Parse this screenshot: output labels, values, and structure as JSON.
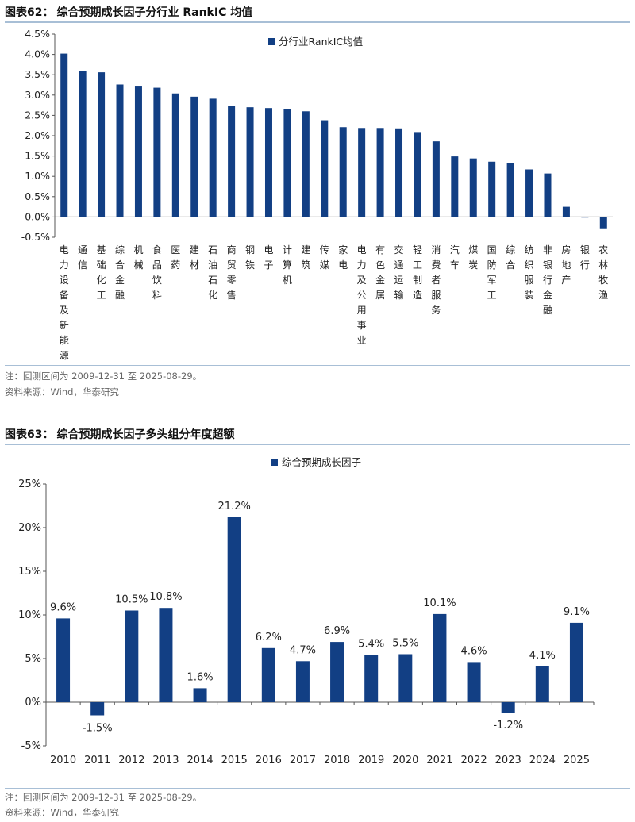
{
  "figure1": {
    "label": "图表62：",
    "title": "综合预期成长因子分行业 RankIC 均值",
    "note": "注：回测区间为 2009-12-31 至 2025-08-29。",
    "source": "资料来源：Wind，华泰研究"
  },
  "figure2": {
    "label": "图表63：",
    "title": "综合预期成长因子多头组分年度超额",
    "note": "注：回测区间为 2009-12-31 至 2025-08-29。",
    "source": "资料来源：Wind，华泰研究"
  },
  "colors": {
    "bar": "#123f84",
    "axis": "#555555"
  },
  "chart_data": [
    {
      "type": "bar",
      "title": "综合预期成长因子分行业 RankIC 均值",
      "legend": "分行业RankIC均值",
      "legend_position": "top-center",
      "ylim": [
        -0.5,
        4.5
      ],
      "yticks": [
        "-0.5%",
        "0.0%",
        "0.5%",
        "1.0%",
        "1.5%",
        "2.0%",
        "2.5%",
        "3.0%",
        "3.5%",
        "4.0%",
        "4.5%"
      ],
      "categories": [
        "电力设备及新能源",
        "通信",
        "基础化工",
        "综合金融",
        "机械",
        "食品饮料",
        "医药",
        "建材",
        "石油石化",
        "商贸零售",
        "钢铁",
        "电子",
        "计算机",
        "建筑",
        "传媒",
        "家电",
        "电力及公用事业",
        "有色金属",
        "交通运输",
        "轻工制造",
        "消费者服务",
        "汽车",
        "煤炭",
        "国防军工",
        "综合",
        "纺织服装",
        "非银行金融",
        "房地产",
        "银行",
        "农林牧渔"
      ],
      "values": [
        4.02,
        3.6,
        3.56,
        3.26,
        3.21,
        3.18,
        3.04,
        2.96,
        2.91,
        2.73,
        2.7,
        2.68,
        2.66,
        2.6,
        2.38,
        2.21,
        2.19,
        2.19,
        2.18,
        2.09,
        1.86,
        1.49,
        1.44,
        1.36,
        1.32,
        1.17,
        1.07,
        0.25,
        -0.01,
        -0.28
      ]
    },
    {
      "type": "bar",
      "title": "综合预期成长因子多头组分年度超额",
      "legend": "综合预期成长因子",
      "legend_position": "top-center",
      "ylim": [
        -5,
        25
      ],
      "yticks": [
        "-5%",
        "0%",
        "5%",
        "10%",
        "15%",
        "20%",
        "25%"
      ],
      "categories": [
        "2010",
        "2011",
        "2012",
        "2013",
        "2014",
        "2015",
        "2016",
        "2017",
        "2018",
        "2019",
        "2020",
        "2021",
        "2022",
        "2023",
        "2024",
        "2025"
      ],
      "values": [
        9.6,
        -1.5,
        10.5,
        10.8,
        1.6,
        21.2,
        6.2,
        4.7,
        6.9,
        5.4,
        5.5,
        10.1,
        4.6,
        -1.2,
        4.1,
        9.1
      ],
      "data_labels": [
        "9.6%",
        "-1.5%",
        "10.5%",
        "10.8%",
        "1.6%",
        "21.2%",
        "6.2%",
        "4.7%",
        "6.9%",
        "5.4%",
        "5.5%",
        "10.1%",
        "4.6%",
        "-1.2%",
        "4.1%",
        "9.1%"
      ]
    }
  ]
}
